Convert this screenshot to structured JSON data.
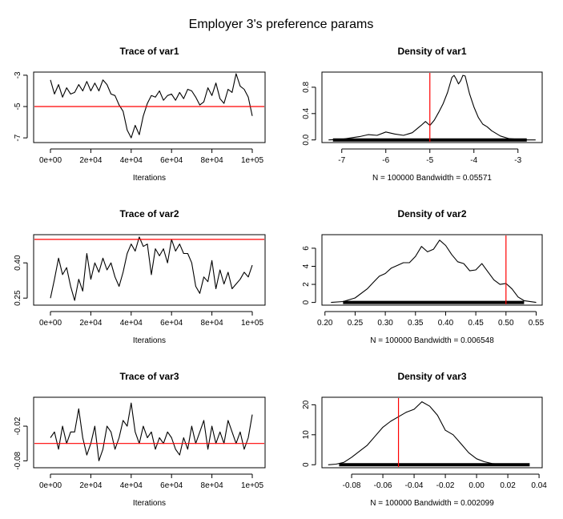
{
  "figure": {
    "title": "Employer 3's preference params"
  },
  "chart_data": [
    {
      "type": "line",
      "title": "Trace of var1",
      "xlabel": "Iterations",
      "ylabel": "",
      "x_ticks": [
        "0e+00",
        "2e+04",
        "4e+04",
        "6e+04",
        "8e+04",
        "1e+05"
      ],
      "x_tick_values": [
        0,
        20000,
        40000,
        60000,
        80000,
        100000
      ],
      "y_ticks": [
        "-7",
        "-5",
        "-3"
      ],
      "y_tick_values": [
        -7,
        -5,
        -3
      ],
      "xlim": [
        0,
        100000
      ],
      "ylim": [
        -7.3,
        -2.8
      ],
      "ref_line": {
        "axis": "y",
        "value": -5,
        "color": "#ff0000"
      },
      "series": [
        {
          "color": "#000000",
          "x": [
            0,
            2000,
            4000,
            6000,
            8000,
            10000,
            12000,
            14000,
            16000,
            18000,
            20000,
            22000,
            24000,
            26000,
            28000,
            30000,
            32000,
            34000,
            36000,
            38000,
            40000,
            42000,
            44000,
            46000,
            48000,
            50000,
            52000,
            54000,
            56000,
            58000,
            60000,
            62000,
            64000,
            66000,
            68000,
            70000,
            72000,
            74000,
            76000,
            78000,
            80000,
            82000,
            84000,
            86000,
            88000,
            90000,
            92000,
            94000,
            96000,
            98000,
            100000
          ],
          "values": [
            -3.3,
            -4.2,
            -3.6,
            -4.4,
            -3.8,
            -4.2,
            -4.1,
            -3.6,
            -4.0,
            -3.4,
            -4.0,
            -3.5,
            -4.0,
            -3.3,
            -3.6,
            -4.2,
            -4.3,
            -4.9,
            -5.3,
            -6.5,
            -7.0,
            -6.2,
            -6.8,
            -5.6,
            -4.8,
            -4.3,
            -4.4,
            -4.0,
            -4.6,
            -4.3,
            -4.2,
            -4.6,
            -4.1,
            -4.5,
            -3.9,
            -4.0,
            -4.4,
            -4.9,
            -4.7,
            -3.8,
            -4.3,
            -3.5,
            -4.5,
            -4.8,
            -3.9,
            -4.1,
            -2.9,
            -3.7,
            -3.9,
            -4.4,
            -5.6
          ]
        }
      ]
    },
    {
      "type": "area",
      "title": "Density of var1",
      "xlabel": "N = 100000   Bandwidth = 0.05571",
      "ylabel": "",
      "x_ticks": [
        "-7",
        "-6",
        "-5",
        "-4",
        "-3"
      ],
      "x_tick_values": [
        -7,
        -6,
        -5,
        -4,
        -3
      ],
      "y_ticks": [
        "0.0",
        "0.4",
        "0.8"
      ],
      "y_tick_values": [
        0.0,
        0.4,
        0.8
      ],
      "xlim": [
        -7.45,
        -2.45
      ],
      "ylim": [
        -0.04,
        1.03
      ],
      "ref_line": {
        "axis": "x",
        "value": -5,
        "color": "#ff0000"
      },
      "rug": {
        "from": -7.2,
        "to": -2.8
      },
      "series": [
        {
          "color": "#000000",
          "x": [
            -7.3,
            -7.0,
            -6.8,
            -6.6,
            -6.4,
            -6.2,
            -6.0,
            -5.8,
            -5.6,
            -5.4,
            -5.2,
            -5.1,
            -5.0,
            -4.9,
            -4.8,
            -4.7,
            -4.6,
            -4.5,
            -4.45,
            -4.4,
            -4.35,
            -4.3,
            -4.25,
            -4.2,
            -4.1,
            -4.0,
            -3.9,
            -3.8,
            -3.7,
            -3.6,
            -3.4,
            -3.2,
            -3.0,
            -2.8,
            -2.6
          ],
          "values": [
            0.0,
            0.01,
            0.03,
            0.05,
            0.08,
            0.07,
            0.12,
            0.09,
            0.07,
            0.11,
            0.22,
            0.28,
            0.22,
            0.3,
            0.42,
            0.55,
            0.72,
            0.95,
            0.98,
            0.92,
            0.85,
            0.9,
            0.98,
            0.97,
            0.7,
            0.5,
            0.34,
            0.24,
            0.2,
            0.14,
            0.06,
            0.02,
            0.01,
            0.0,
            0.0
          ]
        }
      ]
    },
    {
      "type": "line",
      "title": "Trace of var2",
      "xlabel": "Iterations",
      "ylabel": "",
      "x_ticks": [
        "0e+00",
        "2e+04",
        "4e+04",
        "6e+04",
        "8e+04",
        "1e+05"
      ],
      "x_tick_values": [
        0,
        20000,
        40000,
        60000,
        80000,
        100000
      ],
      "y_ticks": [
        "0.25",
        "0.40"
      ],
      "y_tick_values": [
        0.25,
        0.4
      ],
      "xlim": [
        0,
        100000
      ],
      "ylim": [
        0.22,
        0.52
      ],
      "ref_line": {
        "axis": "y",
        "value": 0.5,
        "color": "#ff0000"
      },
      "series": [
        {
          "color": "#000000",
          "x": [
            0,
            2000,
            4000,
            6000,
            8000,
            10000,
            12000,
            14000,
            16000,
            18000,
            20000,
            22000,
            24000,
            26000,
            28000,
            30000,
            32000,
            34000,
            36000,
            38000,
            40000,
            42000,
            44000,
            46000,
            48000,
            50000,
            52000,
            54000,
            56000,
            58000,
            60000,
            62000,
            64000,
            66000,
            68000,
            70000,
            72000,
            74000,
            76000,
            78000,
            80000,
            82000,
            84000,
            86000,
            88000,
            90000,
            92000,
            94000,
            96000,
            98000,
            100000
          ],
          "values": [
            0.25,
            0.33,
            0.42,
            0.35,
            0.38,
            0.3,
            0.24,
            0.33,
            0.28,
            0.44,
            0.33,
            0.4,
            0.36,
            0.42,
            0.37,
            0.4,
            0.34,
            0.3,
            0.36,
            0.44,
            0.48,
            0.45,
            0.51,
            0.47,
            0.48,
            0.35,
            0.46,
            0.43,
            0.46,
            0.4,
            0.5,
            0.45,
            0.48,
            0.44,
            0.44,
            0.4,
            0.3,
            0.27,
            0.34,
            0.32,
            0.41,
            0.29,
            0.37,
            0.31,
            0.36,
            0.29,
            0.31,
            0.33,
            0.36,
            0.34,
            0.39
          ]
        }
      ]
    },
    {
      "type": "area",
      "title": "Density of var2",
      "xlabel": "N = 100000   Bandwidth = 0.006548",
      "ylabel": "",
      "x_ticks": [
        "0.20",
        "0.25",
        "0.30",
        "0.35",
        "0.40",
        "0.45",
        "0.50",
        "0.55"
      ],
      "x_tick_values": [
        0.2,
        0.25,
        0.3,
        0.35,
        0.4,
        0.45,
        0.5,
        0.55
      ],
      "y_ticks": [
        "0",
        "2",
        "4",
        "6"
      ],
      "y_tick_values": [
        0,
        2,
        4,
        6
      ],
      "xlim": [
        0.195,
        0.56
      ],
      "ylim": [
        -0.3,
        7.5
      ],
      "ref_line": {
        "axis": "x",
        "value": 0.5,
        "color": "#ff0000"
      },
      "rug": {
        "from": 0.23,
        "to": 0.53
      },
      "series": [
        {
          "color": "#000000",
          "x": [
            0.21,
            0.23,
            0.25,
            0.27,
            0.28,
            0.29,
            0.3,
            0.31,
            0.32,
            0.33,
            0.34,
            0.35,
            0.36,
            0.37,
            0.38,
            0.39,
            0.4,
            0.41,
            0.42,
            0.43,
            0.44,
            0.45,
            0.46,
            0.47,
            0.48,
            0.49,
            0.5,
            0.51,
            0.52,
            0.53,
            0.55
          ],
          "values": [
            0.0,
            0.1,
            0.5,
            1.5,
            2.2,
            2.9,
            3.2,
            3.8,
            4.1,
            4.4,
            4.4,
            5.1,
            6.2,
            5.6,
            5.9,
            6.9,
            6.3,
            5.3,
            4.5,
            4.3,
            3.5,
            3.6,
            4.3,
            3.4,
            2.5,
            2.0,
            2.1,
            1.5,
            0.6,
            0.2,
            0.0
          ]
        }
      ]
    },
    {
      "type": "line",
      "title": "Trace of var3",
      "xlabel": "Iterations",
      "ylabel": "",
      "x_ticks": [
        "0e+00",
        "2e+04",
        "4e+04",
        "6e+04",
        "8e+04",
        "1e+05"
      ],
      "x_tick_values": [
        0,
        20000,
        40000,
        60000,
        80000,
        100000
      ],
      "y_ticks": [
        "-0.08",
        "-0.02"
      ],
      "y_tick_values": [
        -0.08,
        -0.02
      ],
      "xlim": [
        0,
        100000
      ],
      "ylim": [
        -0.092,
        0.03
      ],
      "ref_line": {
        "axis": "y",
        "value": -0.05,
        "color": "#ff0000"
      },
      "series": [
        {
          "color": "#000000",
          "x": [
            0,
            2000,
            4000,
            6000,
            8000,
            10000,
            12000,
            14000,
            16000,
            18000,
            20000,
            22000,
            24000,
            26000,
            28000,
            30000,
            32000,
            34000,
            36000,
            38000,
            40000,
            42000,
            44000,
            46000,
            48000,
            50000,
            52000,
            54000,
            56000,
            58000,
            60000,
            62000,
            64000,
            66000,
            68000,
            70000,
            72000,
            74000,
            76000,
            78000,
            80000,
            82000,
            84000,
            86000,
            88000,
            90000,
            92000,
            94000,
            96000,
            98000,
            100000
          ],
          "values": [
            -0.04,
            -0.03,
            -0.06,
            -0.02,
            -0.05,
            -0.03,
            -0.03,
            0.01,
            -0.04,
            -0.07,
            -0.05,
            -0.02,
            -0.08,
            -0.06,
            -0.02,
            -0.03,
            -0.06,
            -0.04,
            -0.01,
            -0.02,
            0.02,
            -0.03,
            -0.05,
            -0.02,
            -0.04,
            -0.03,
            -0.06,
            -0.04,
            -0.05,
            -0.03,
            -0.04,
            -0.06,
            -0.07,
            -0.04,
            -0.06,
            -0.02,
            -0.05,
            -0.03,
            -0.01,
            -0.06,
            -0.02,
            -0.05,
            -0.03,
            -0.05,
            -0.01,
            -0.03,
            -0.05,
            -0.03,
            -0.06,
            -0.04,
            0.0
          ]
        }
      ]
    },
    {
      "type": "area",
      "title": "Density of var3",
      "xlabel": "N = 100000   Bandwidth = 0.002099",
      "ylabel": "",
      "x_ticks": [
        "-0.08",
        "-0.06",
        "-0.04",
        "-0.02",
        "0.00",
        "0.02",
        "0.04"
      ],
      "x_tick_values": [
        -0.08,
        -0.06,
        -0.04,
        -0.02,
        0.0,
        0.02,
        0.04
      ],
      "y_ticks": [
        "0",
        "10",
        "20"
      ],
      "y_tick_values": [
        0,
        10,
        20
      ],
      "xlim": [
        -0.099,
        0.042
      ],
      "ylim": [
        -1,
        22.5
      ],
      "ref_line": {
        "axis": "x",
        "value": -0.05,
        "color": "#ff0000"
      },
      "rug": {
        "from": -0.088,
        "to": 0.034
      },
      "series": [
        {
          "color": "#000000",
          "x": [
            -0.095,
            -0.09,
            -0.085,
            -0.08,
            -0.075,
            -0.07,
            -0.065,
            -0.06,
            -0.055,
            -0.05,
            -0.045,
            -0.04,
            -0.035,
            -0.03,
            -0.025,
            -0.02,
            -0.015,
            -0.01,
            -0.005,
            0.0,
            0.005,
            0.01,
            0.015,
            0.02,
            0.025,
            0.03
          ],
          "values": [
            0.0,
            0.2,
            0.8,
            2.5,
            4.5,
            6.5,
            9.5,
            12.5,
            14.5,
            16.0,
            17.5,
            18.5,
            21.0,
            19.5,
            16.5,
            11.5,
            10.0,
            7.0,
            4.0,
            2.0,
            1.0,
            0.4,
            0.2,
            0.1,
            0.0,
            0.0
          ]
        }
      ]
    }
  ]
}
